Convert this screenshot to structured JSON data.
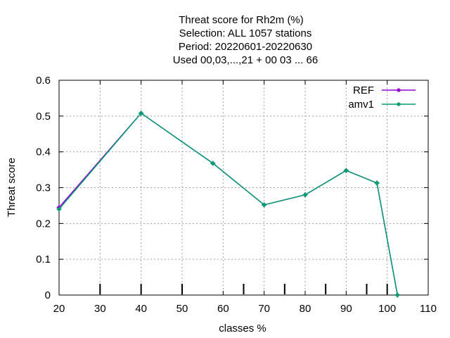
{
  "chart_data": {
    "type": "line",
    "title_lines": [
      "Threat score  for Rh2m (%)",
      "Selection: ALL   1057 stations",
      "Period: 20220601-20220630",
      "Used  00,03,...,21  + 00 03 ... 66"
    ],
    "xlabel": "classes %",
    "ylabel": "Threat score",
    "xlim": [
      20,
      110
    ],
    "ylim": [
      0,
      0.6
    ],
    "xticks": [
      20,
      30,
      40,
      50,
      60,
      70,
      80,
      90,
      100,
      110
    ],
    "yticks": [
      0,
      0.1,
      0.2,
      0.3,
      0.4,
      0.5,
      0.6
    ],
    "ytick_labels": [
      "0",
      "0.1",
      "0.2",
      "0.3",
      "0.4",
      "0.5",
      "0.6"
    ],
    "grid": true,
    "legend_position": "top-right",
    "class_marks": [
      30,
      40,
      50,
      65,
      75,
      85,
      95,
      100
    ],
    "series": [
      {
        "name": "REF",
        "color": "#9400d3",
        "x": [
          20,
          40,
          57.5,
          70,
          80,
          90,
          97.5,
          102.5
        ],
        "y": [
          0.245,
          0.508,
          0.368,
          0.252,
          0.28,
          0.348,
          0.313,
          0.0
        ]
      },
      {
        "name": "amv1",
        "color": "#009e73",
        "x": [
          20,
          40,
          57.5,
          70,
          80,
          90,
          97.5,
          102.5
        ],
        "y": [
          0.24,
          0.508,
          0.368,
          0.252,
          0.28,
          0.348,
          0.313,
          0.0
        ]
      }
    ]
  }
}
